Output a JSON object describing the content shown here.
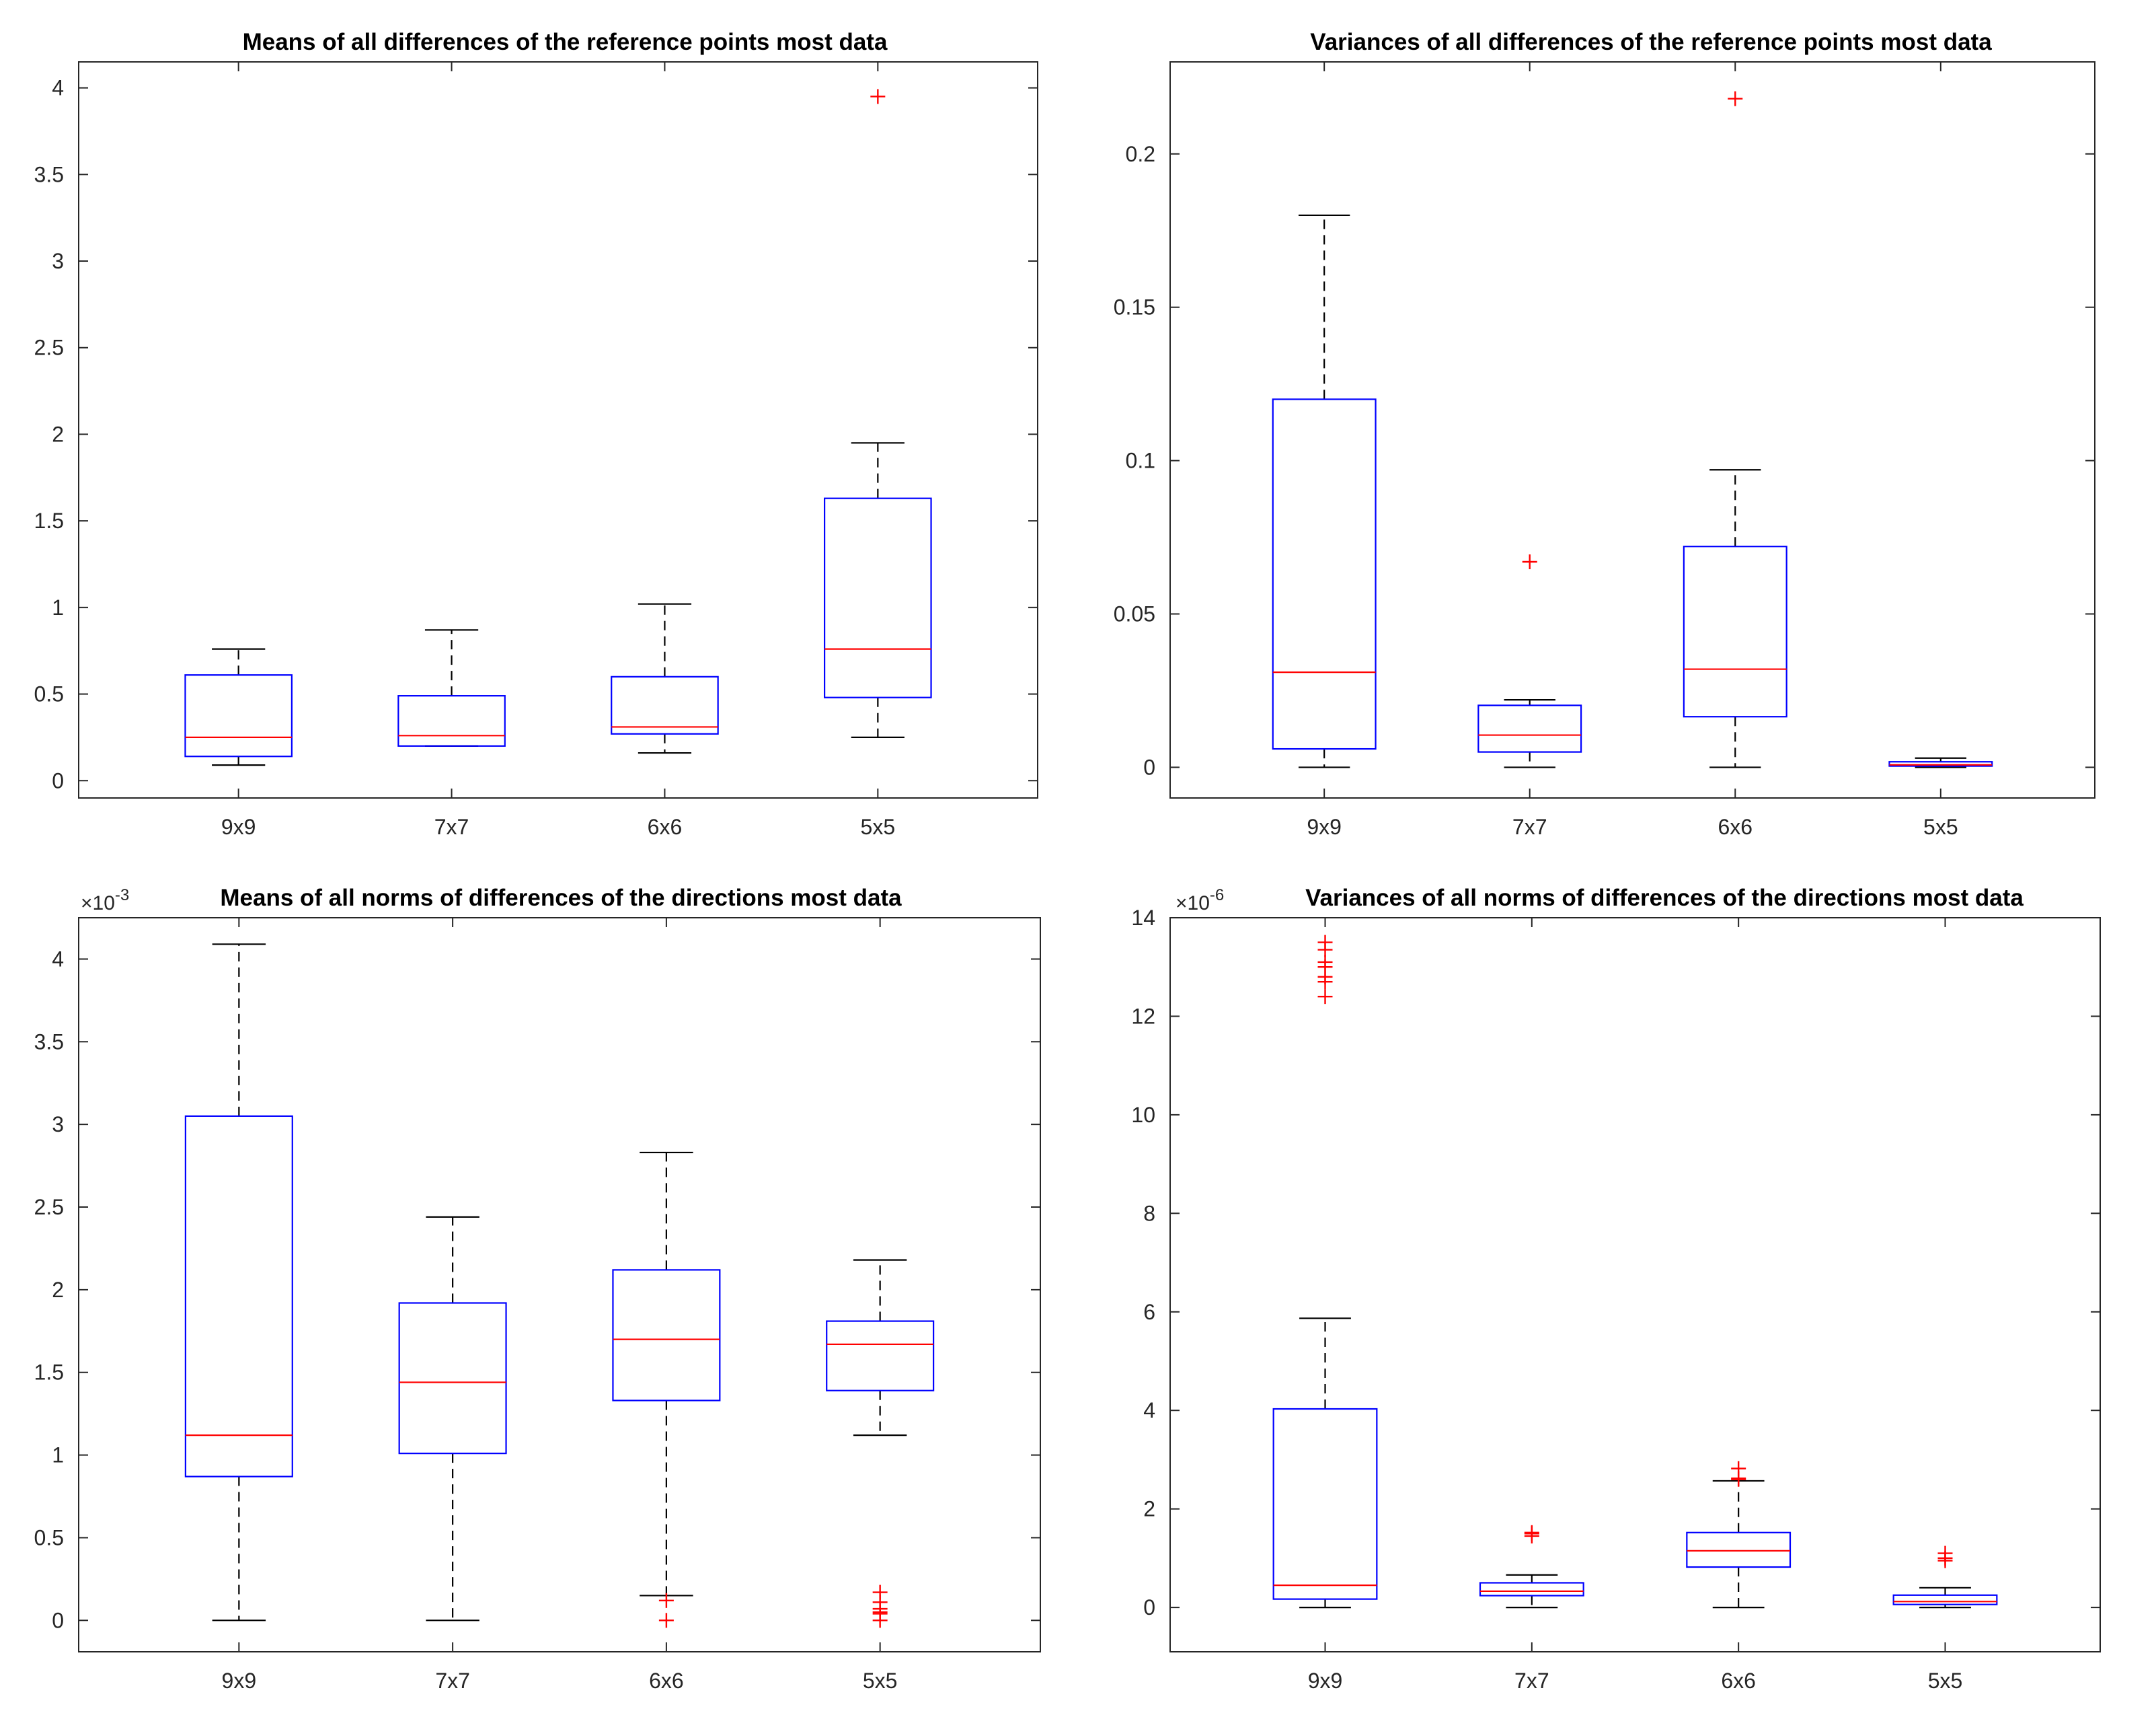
{
  "figure": {
    "subplot_count": 4,
    "colors": {
      "box": "#0000ff",
      "median": "#ff0000",
      "whisker": "#000000",
      "outlier": "#ff0000",
      "axes": "#262626"
    }
  },
  "chart_data": [
    {
      "type": "boxplot",
      "title": "Means of all differences of the reference points most data",
      "categories": [
        "9x9",
        "7x7",
        "6x6",
        "5x5"
      ],
      "ylim": [
        -0.1,
        4.15
      ],
      "yticks": [
        0,
        0.5,
        1,
        1.5,
        2,
        2.5,
        3,
        3.5,
        4
      ],
      "ytick_labels": [
        "0",
        "0.5",
        "1",
        "1.5",
        "2",
        "2.5",
        "3",
        "3.5",
        "4"
      ],
      "exponent_label": null,
      "boxes": [
        {
          "category": "9x9",
          "whisker_low": 0.09,
          "q1": 0.14,
          "median": 0.25,
          "q3": 0.61,
          "whisker_high": 0.76,
          "outliers": []
        },
        {
          "category": "7x7",
          "whisker_low": 0.2,
          "q1": 0.2,
          "median": 0.26,
          "q3": 0.49,
          "whisker_high": 0.87,
          "outliers": []
        },
        {
          "category": "6x6",
          "whisker_low": 0.16,
          "q1": 0.27,
          "median": 0.31,
          "q3": 0.6,
          "whisker_high": 1.02,
          "outliers": []
        },
        {
          "category": "5x5",
          "whisker_low": 0.25,
          "q1": 0.48,
          "median": 0.76,
          "q3": 1.63,
          "whisker_high": 1.95,
          "outliers": [
            3.95
          ]
        }
      ]
    },
    {
      "type": "boxplot",
      "title": "Variances of all differences of the reference points most data",
      "categories": [
        "9x9",
        "7x7",
        "6x6",
        "5x5"
      ],
      "ylim": [
        -0.01,
        0.23
      ],
      "yticks": [
        0,
        0.05,
        0.1,
        0.15,
        0.2
      ],
      "ytick_labels": [
        "0",
        "0.05",
        "0.1",
        "0.15",
        "0.2"
      ],
      "exponent_label": null,
      "boxes": [
        {
          "category": "9x9",
          "whisker_low": 0.0,
          "q1": 0.006,
          "median": 0.031,
          "q3": 0.12,
          "whisker_high": 0.18,
          "outliers": []
        },
        {
          "category": "7x7",
          "whisker_low": 0.0,
          "q1": 0.005,
          "median": 0.0105,
          "q3": 0.0202,
          "whisker_high": 0.022,
          "outliers": [
            0.067
          ]
        },
        {
          "category": "6x6",
          "whisker_low": 0.0,
          "q1": 0.0165,
          "median": 0.032,
          "q3": 0.072,
          "whisker_high": 0.097,
          "outliers": [
            0.218
          ]
        },
        {
          "category": "5x5",
          "whisker_low": 0.0,
          "q1": 0.0004,
          "median": 0.0008,
          "q3": 0.0018,
          "whisker_high": 0.003,
          "outliers": []
        }
      ]
    },
    {
      "type": "boxplot",
      "title": "Means of all norms of differences of the directions most data",
      "categories": [
        "9x9",
        "7x7",
        "6x6",
        "5x5"
      ],
      "ylim": [
        -0.19,
        4.25
      ],
      "yticks": [
        0,
        0.5,
        1,
        1.5,
        2,
        2.5,
        3,
        3.5,
        4
      ],
      "ytick_labels": [
        "0",
        "0.5",
        "1",
        "1.5",
        "2",
        "2.5",
        "3",
        "3.5",
        "4"
      ],
      "exponent_label": {
        "base": "×10",
        "exponent": "-3"
      },
      "boxes": [
        {
          "category": "9x9",
          "whisker_low": 0.0,
          "q1": 0.87,
          "median": 1.12,
          "q3": 3.05,
          "whisker_high": 4.09,
          "outliers": []
        },
        {
          "category": "7x7",
          "whisker_low": 0.0,
          "q1": 1.01,
          "median": 1.44,
          "q3": 1.92,
          "whisker_high": 2.44,
          "outliers": []
        },
        {
          "category": "6x6",
          "whisker_low": 0.15,
          "q1": 1.33,
          "median": 1.7,
          "q3": 2.12,
          "whisker_high": 2.83,
          "outliers": [
            0.12,
            0.0
          ]
        },
        {
          "category": "5x5",
          "whisker_low": 1.12,
          "q1": 1.39,
          "median": 1.67,
          "q3": 1.81,
          "whisker_high": 2.18,
          "outliers": [
            0.17,
            0.11,
            0.07,
            0.05,
            0.04,
            0.0
          ]
        }
      ]
    },
    {
      "type": "boxplot",
      "title": "Variances of all norms of differences of the directions most data",
      "categories": [
        "9x9",
        "7x7",
        "6x6",
        "5x5"
      ],
      "ylim": [
        -0.9,
        14.0
      ],
      "yticks": [
        0,
        2,
        4,
        6,
        8,
        10,
        12,
        14
      ],
      "ytick_labels": [
        "0",
        "2",
        "4",
        "6",
        "8",
        "10",
        "12",
        "14"
      ],
      "exponent_label": {
        "base": "×10",
        "exponent": "-6"
      },
      "boxes": [
        {
          "category": "9x9",
          "whisker_low": 0.0,
          "q1": 0.17,
          "median": 0.45,
          "q3": 4.03,
          "whisker_high": 5.87,
          "outliers": [
            13.5,
            13.35,
            13.1,
            13.0,
            12.8,
            12.7,
            12.4
          ]
        },
        {
          "category": "7x7",
          "whisker_low": 0.0,
          "q1": 0.24,
          "median": 0.33,
          "q3": 0.5,
          "whisker_high": 0.66,
          "outliers": [
            1.45,
            1.5,
            1.52
          ]
        },
        {
          "category": "6x6",
          "whisker_low": 0.0,
          "q1": 0.82,
          "median": 1.15,
          "q3": 1.52,
          "whisker_high": 2.57,
          "outliers": [
            2.6,
            2.62,
            2.82
          ]
        },
        {
          "category": "5x5",
          "whisker_low": 0.0,
          "q1": 0.06,
          "median": 0.12,
          "q3": 0.25,
          "whisker_high": 0.4,
          "outliers": [
            0.95,
            1.0,
            1.1
          ]
        }
      ]
    }
  ]
}
